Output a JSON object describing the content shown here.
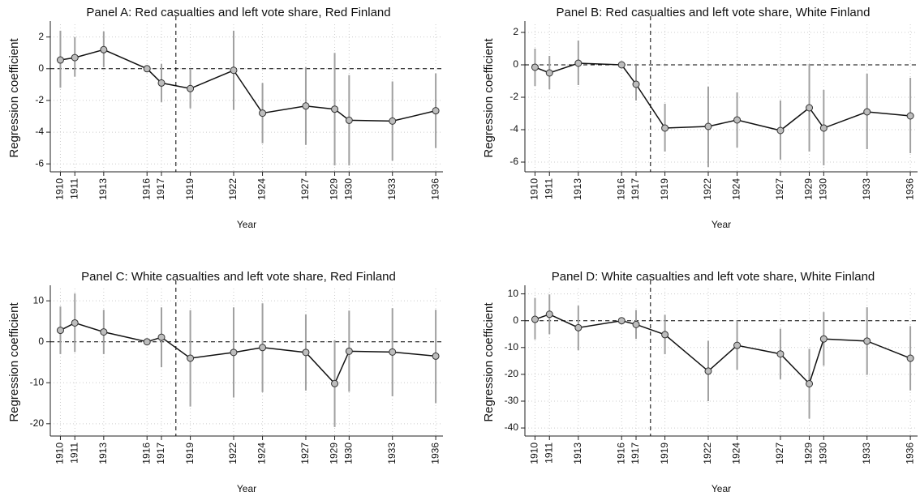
{
  "chart_data": [
    {
      "type": "line",
      "title": "Panel A: Red casualties and left vote share, Red Finland",
      "y_label": "Regression coefficient",
      "x_label": "Year",
      "x": [
        1910,
        1911,
        1913,
        1916,
        1917,
        1919,
        1922,
        1924,
        1927,
        1929,
        1930,
        1933,
        1936
      ],
      "values": [
        0.55,
        0.7,
        1.2,
        0,
        -0.9,
        -1.25,
        -0.1,
        -2.8,
        -2.35,
        -2.55,
        -3.25,
        -3.3,
        -2.65
      ],
      "ci_low": [
        -1.2,
        -0.5,
        0.1,
        0,
        -2.1,
        -2.5,
        -2.6,
        -4.7,
        -4.8,
        -6.1,
        -6.1,
        -5.8,
        -5.0
      ],
      "ci_high": [
        2.4,
        2.0,
        2.35,
        0,
        0.3,
        0,
        2.4,
        -0.9,
        0.1,
        1.0,
        -0.4,
        -0.8,
        -0.3
      ],
      "xlim": [
        1909.3,
        1936.5
      ],
      "xticks": [
        1910,
        1911,
        1913,
        1916,
        1917,
        1919,
        1922,
        1924,
        1927,
        1929,
        1930,
        1933,
        1936
      ],
      "ylim": [
        -6.5,
        2.8
      ],
      "yticks": [
        -6,
        -4,
        -2,
        0,
        2
      ],
      "hline": 0,
      "vline": 1918,
      "grid": true,
      "color": "#111111",
      "errorbar_color": "#a0a0a0",
      "marker_fill": "#bdbdbd"
    },
    {
      "type": "line",
      "title": "Panel B: Red casualties and left vote share, White Finland",
      "y_label": "Regression coefficient",
      "x_label": "Year",
      "x": [
        1910,
        1911,
        1913,
        1916,
        1917,
        1919,
        1922,
        1924,
        1927,
        1929,
        1930,
        1933,
        1936
      ],
      "values": [
        -0.15,
        -0.5,
        0.1,
        0,
        -1.2,
        -3.9,
        -3.8,
        -3.4,
        -4.05,
        -2.65,
        -3.9,
        -2.9,
        -3.15
      ],
      "ci_low": [
        -1.3,
        -1.5,
        -1.25,
        0,
        -2.2,
        -5.35,
        -6.3,
        -5.1,
        -5.85,
        -5.35,
        -6.2,
        -5.2,
        -5.45
      ],
      "ci_high": [
        1.0,
        0.55,
        1.5,
        0,
        -0.05,
        -2.4,
        -1.35,
        -1.7,
        -2.2,
        0.05,
        -1.55,
        -0.55,
        -0.8
      ],
      "xlim": [
        1909.3,
        1936.5
      ],
      "xticks": [
        1910,
        1911,
        1913,
        1916,
        1917,
        1919,
        1922,
        1924,
        1927,
        1929,
        1930,
        1933,
        1936
      ],
      "ylim": [
        -6.6,
        2.5
      ],
      "yticks": [
        -6,
        -4,
        -2,
        0,
        2
      ],
      "hline": 0,
      "vline": 1918,
      "grid": true,
      "color": "#111111",
      "errorbar_color": "#a0a0a0",
      "marker_fill": "#bdbdbd"
    },
    {
      "type": "line",
      "title": "Panel C: White casualties and left vote share, Red Finland",
      "y_label": "Regression coefficient",
      "x_label": "Year",
      "x": [
        1910,
        1911,
        1913,
        1916,
        1917,
        1919,
        1922,
        1924,
        1927,
        1929,
        1930,
        1933,
        1936
      ],
      "values": [
        2.8,
        4.6,
        2.4,
        0,
        1.1,
        -4,
        -2.6,
        -1.4,
        -2.6,
        -10.2,
        -2.3,
        -2.5,
        -3.5
      ],
      "ci_low": [
        -3,
        -2.5,
        -3,
        0,
        -6.2,
        -15.8,
        -13.6,
        -12.3,
        -11.9,
        -20.8,
        -12.2,
        -13.3,
        -15
      ],
      "ci_high": [
        8.6,
        11.8,
        7.8,
        0,
        8.4,
        7.7,
        8.4,
        9.4,
        6.7,
        0.4,
        7.6,
        8.2,
        7.8
      ],
      "xlim": [
        1909.3,
        1936.5
      ],
      "xticks": [
        1910,
        1911,
        1913,
        1916,
        1917,
        1919,
        1922,
        1924,
        1927,
        1929,
        1930,
        1933,
        1936
      ],
      "ylim": [
        -23,
        13
      ],
      "yticks": [
        -20,
        -10,
        0,
        10
      ],
      "hline": 0,
      "vline": 1918,
      "grid": true,
      "color": "#111111",
      "errorbar_color": "#a0a0a0",
      "marker_fill": "#bdbdbd"
    },
    {
      "type": "line",
      "title": "Panel D: White casualties and left vote share, White Finland",
      "y_label": "Regression coefficient",
      "x_label": "Year",
      "x": [
        1910,
        1911,
        1913,
        1916,
        1917,
        1919,
        1922,
        1924,
        1927,
        1929,
        1930,
        1933,
        1936
      ],
      "values": [
        0.5,
        2.4,
        -2.6,
        0,
        -1.4,
        -5.2,
        -18.8,
        -9.2,
        -12.4,
        -23.5,
        -6.8,
        -7.6,
        -14
      ],
      "ci_low": [
        -7,
        -5,
        -11,
        0,
        -6.8,
        -12.5,
        -30,
        -18.3,
        -21.8,
        -36.5,
        -16.8,
        -20.2,
        -26
      ],
      "ci_high": [
        8.5,
        9.8,
        5.6,
        0,
        4,
        2.2,
        -7.5,
        0,
        -3,
        -10.5,
        3.2,
        5,
        -2
      ],
      "xlim": [
        1909.3,
        1936.5
      ],
      "xticks": [
        1910,
        1911,
        1913,
        1916,
        1917,
        1919,
        1922,
        1924,
        1927,
        1929,
        1930,
        1933,
        1936
      ],
      "ylim": [
        -43,
        12
      ],
      "yticks": [
        -40,
        -30,
        -20,
        -10,
        0,
        10
      ],
      "hline": 0,
      "vline": 1918,
      "grid": true,
      "color": "#111111",
      "errorbar_color": "#a0a0a0",
      "marker_fill": "#bdbdbd"
    }
  ]
}
